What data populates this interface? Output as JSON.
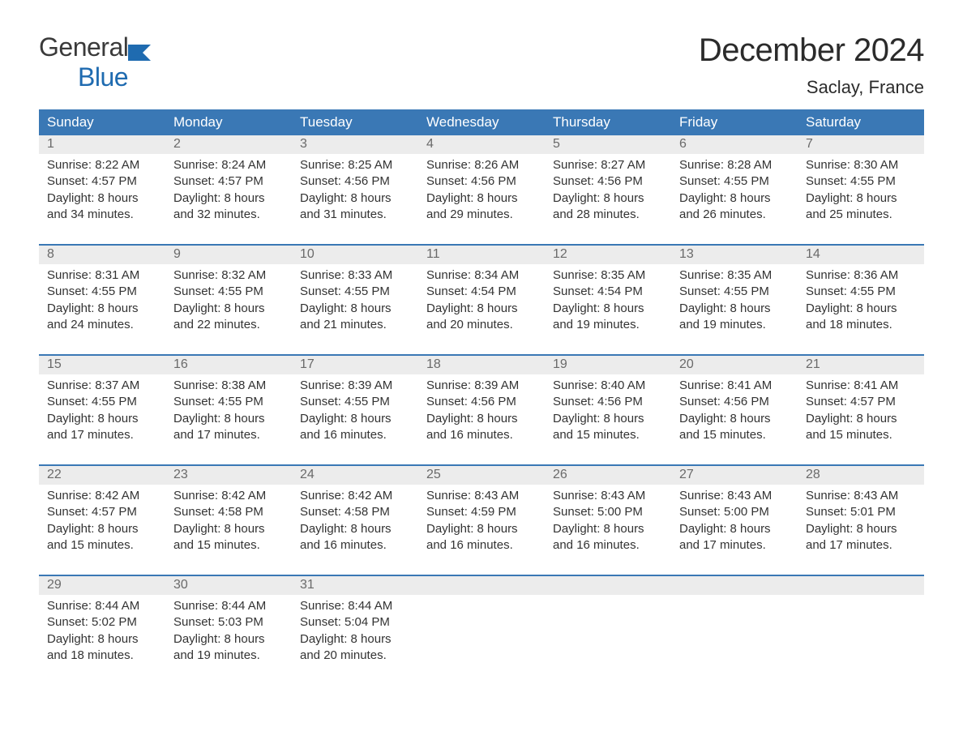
{
  "logo": {
    "line1": "General",
    "line2": "Blue"
  },
  "title": "December 2024",
  "location": "Saclay, France",
  "colors": {
    "header_bg": "#3a78b5",
    "header_text": "#ffffff",
    "date_bg": "#ececec",
    "date_text": "#6a6a6a",
    "body_text": "#333333",
    "rule": "#3a78b5",
    "logo_accent": "#1f6bb0"
  },
  "day_names": [
    "Sunday",
    "Monday",
    "Tuesday",
    "Wednesday",
    "Thursday",
    "Friday",
    "Saturday"
  ],
  "weeks": [
    [
      {
        "n": "1",
        "sr": "8:22 AM",
        "ss": "4:57 PM",
        "dl": "8 hours and 34 minutes."
      },
      {
        "n": "2",
        "sr": "8:24 AM",
        "ss": "4:57 PM",
        "dl": "8 hours and 32 minutes."
      },
      {
        "n": "3",
        "sr": "8:25 AM",
        "ss": "4:56 PM",
        "dl": "8 hours and 31 minutes."
      },
      {
        "n": "4",
        "sr": "8:26 AM",
        "ss": "4:56 PM",
        "dl": "8 hours and 29 minutes."
      },
      {
        "n": "5",
        "sr": "8:27 AM",
        "ss": "4:56 PM",
        "dl": "8 hours and 28 minutes."
      },
      {
        "n": "6",
        "sr": "8:28 AM",
        "ss": "4:55 PM",
        "dl": "8 hours and 26 minutes."
      },
      {
        "n": "7",
        "sr": "8:30 AM",
        "ss": "4:55 PM",
        "dl": "8 hours and 25 minutes."
      }
    ],
    [
      {
        "n": "8",
        "sr": "8:31 AM",
        "ss": "4:55 PM",
        "dl": "8 hours and 24 minutes."
      },
      {
        "n": "9",
        "sr": "8:32 AM",
        "ss": "4:55 PM",
        "dl": "8 hours and 22 minutes."
      },
      {
        "n": "10",
        "sr": "8:33 AM",
        "ss": "4:55 PM",
        "dl": "8 hours and 21 minutes."
      },
      {
        "n": "11",
        "sr": "8:34 AM",
        "ss": "4:54 PM",
        "dl": "8 hours and 20 minutes."
      },
      {
        "n": "12",
        "sr": "8:35 AM",
        "ss": "4:54 PM",
        "dl": "8 hours and 19 minutes."
      },
      {
        "n": "13",
        "sr": "8:35 AM",
        "ss": "4:55 PM",
        "dl": "8 hours and 19 minutes."
      },
      {
        "n": "14",
        "sr": "8:36 AM",
        "ss": "4:55 PM",
        "dl": "8 hours and 18 minutes."
      }
    ],
    [
      {
        "n": "15",
        "sr": "8:37 AM",
        "ss": "4:55 PM",
        "dl": "8 hours and 17 minutes."
      },
      {
        "n": "16",
        "sr": "8:38 AM",
        "ss": "4:55 PM",
        "dl": "8 hours and 17 minutes."
      },
      {
        "n": "17",
        "sr": "8:39 AM",
        "ss": "4:55 PM",
        "dl": "8 hours and 16 minutes."
      },
      {
        "n": "18",
        "sr": "8:39 AM",
        "ss": "4:56 PM",
        "dl": "8 hours and 16 minutes."
      },
      {
        "n": "19",
        "sr": "8:40 AM",
        "ss": "4:56 PM",
        "dl": "8 hours and 15 minutes."
      },
      {
        "n": "20",
        "sr": "8:41 AM",
        "ss": "4:56 PM",
        "dl": "8 hours and 15 minutes."
      },
      {
        "n": "21",
        "sr": "8:41 AM",
        "ss": "4:57 PM",
        "dl": "8 hours and 15 minutes."
      }
    ],
    [
      {
        "n": "22",
        "sr": "8:42 AM",
        "ss": "4:57 PM",
        "dl": "8 hours and 15 minutes."
      },
      {
        "n": "23",
        "sr": "8:42 AM",
        "ss": "4:58 PM",
        "dl": "8 hours and 15 minutes."
      },
      {
        "n": "24",
        "sr": "8:42 AM",
        "ss": "4:58 PM",
        "dl": "8 hours and 16 minutes."
      },
      {
        "n": "25",
        "sr": "8:43 AM",
        "ss": "4:59 PM",
        "dl": "8 hours and 16 minutes."
      },
      {
        "n": "26",
        "sr": "8:43 AM",
        "ss": "5:00 PM",
        "dl": "8 hours and 16 minutes."
      },
      {
        "n": "27",
        "sr": "8:43 AM",
        "ss": "5:00 PM",
        "dl": "8 hours and 17 minutes."
      },
      {
        "n": "28",
        "sr": "8:43 AM",
        "ss": "5:01 PM",
        "dl": "8 hours and 17 minutes."
      }
    ],
    [
      {
        "n": "29",
        "sr": "8:44 AM",
        "ss": "5:02 PM",
        "dl": "8 hours and 18 minutes."
      },
      {
        "n": "30",
        "sr": "8:44 AM",
        "ss": "5:03 PM",
        "dl": "8 hours and 19 minutes."
      },
      {
        "n": "31",
        "sr": "8:44 AM",
        "ss": "5:04 PM",
        "dl": "8 hours and 20 minutes."
      },
      null,
      null,
      null,
      null
    ]
  ],
  "labels": {
    "sunrise": "Sunrise: ",
    "sunset": "Sunset: ",
    "daylight": "Daylight: "
  }
}
